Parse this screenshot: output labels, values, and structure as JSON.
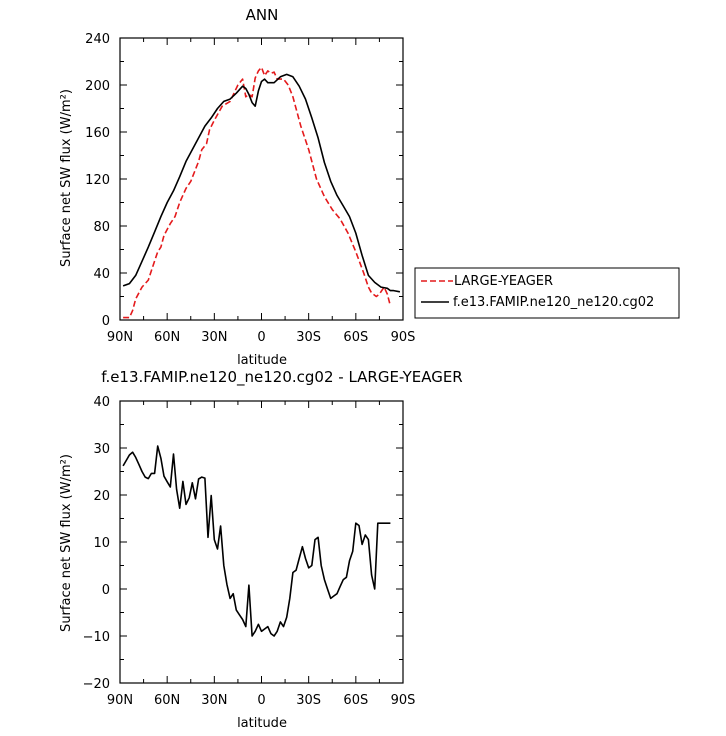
{
  "chart_data": [
    {
      "type": "line",
      "title": "ANN",
      "xlabel": "latitude",
      "ylabel": "Surface net SW flux (W/m²)",
      "xlim": [
        90,
        -90
      ],
      "ylim": [
        0,
        240
      ],
      "xticks": [
        90,
        60,
        30,
        0,
        -30,
        -60,
        -90
      ],
      "xticklabels": [
        "90N",
        "60N",
        "30N",
        "0",
        "30S",
        "60S",
        "90S"
      ],
      "yticks": [
        0,
        40,
        80,
        120,
        160,
        200,
        240
      ],
      "yticklabels": [
        "0",
        "40",
        "80",
        "120",
        "160",
        "200",
        "240"
      ],
      "grid": false,
      "legend": "outside-right",
      "series": [
        {
          "name": "LARGE-YEAGER",
          "color": "#e41a1c",
          "dash": "dashed",
          "x": [
            88,
            84,
            82,
            80,
            76,
            72,
            70,
            66,
            64,
            62,
            58,
            55,
            52,
            48,
            45,
            40,
            38,
            35,
            33,
            30,
            25,
            20,
            15,
            12,
            10,
            8,
            6,
            4,
            2,
            0,
            -2,
            -4,
            -6,
            -8,
            -10,
            -14,
            -17,
            -20,
            -25,
            -30,
            -35,
            -40,
            -45,
            -50,
            -55,
            -60,
            -65,
            -68,
            -70,
            -73,
            -75,
            -78,
            -80,
            -82
          ],
          "y": [
            2,
            2,
            8,
            18,
            28,
            34,
            42,
            58,
            62,
            72,
            82,
            88,
            100,
            112,
            118,
            135,
            145,
            150,
            162,
            170,
            182,
            186,
            200,
            205,
            190,
            192,
            190,
            206,
            212,
            215,
            208,
            212,
            210,
            211,
            205,
            205,
            200,
            190,
            165,
            145,
            120,
            105,
            94,
            86,
            74,
            58,
            40,
            28,
            23,
            20,
            22,
            28,
            22,
            12
          ]
        },
        {
          "name": "f.e13.FAMIP.ne120_ne120.cg02",
          "color": "#000000",
          "dash": "solid",
          "x": [
            88,
            84,
            80,
            76,
            72,
            68,
            64,
            60,
            56,
            52,
            48,
            44,
            40,
            36,
            32,
            28,
            24,
            20,
            16,
            12,
            10,
            8,
            6,
            4,
            2,
            0,
            -2,
            -4,
            -8,
            -12,
            -16,
            -20,
            -24,
            -28,
            -32,
            -36,
            -40,
            -44,
            -48,
            -52,
            -56,
            -60,
            -64,
            -68,
            -72,
            -76,
            -80,
            -82,
            -84,
            -88
          ],
          "y": [
            29,
            31,
            38,
            50,
            62,
            75,
            88,
            100,
            110,
            122,
            135,
            145,
            155,
            165,
            172,
            180,
            186,
            188,
            193,
            199,
            197,
            192,
            185,
            182,
            195,
            203,
            205,
            202,
            202,
            207,
            209,
            207,
            199,
            188,
            172,
            155,
            134,
            118,
            106,
            97,
            88,
            74,
            55,
            38,
            32,
            28,
            27,
            25,
            25,
            24
          ]
        }
      ]
    },
    {
      "type": "line",
      "title": "f.e13.FAMIP.ne120_ne120.cg02 - LARGE-YEAGER",
      "xlabel": "latitude",
      "ylabel": "Surface net SW flux (W/m²)",
      "xlim": [
        90,
        -90
      ],
      "ylim": [
        -20,
        40
      ],
      "xticks": [
        90,
        60,
        30,
        0,
        -30,
        -60,
        -90
      ],
      "xticklabels": [
        "90N",
        "60N",
        "30N",
        "0",
        "30S",
        "60S",
        "90S"
      ],
      "yticks": [
        -20,
        -10,
        0,
        10,
        20,
        30,
        40
      ],
      "yticklabels": [
        "−20",
        "−10",
        "0",
        "10",
        "20",
        "30",
        "40"
      ],
      "grid": false,
      "series": [
        {
          "color": "#000000",
          "dash": "solid",
          "x": [
            88,
            84,
            82,
            80,
            78,
            76,
            74,
            72,
            70,
            68,
            66,
            64,
            62,
            60,
            58,
            56,
            54,
            52,
            50,
            48,
            46,
            44,
            42,
            40,
            38,
            36,
            34,
            32,
            30,
            28,
            26,
            24,
            22,
            20,
            18,
            16,
            14,
            12,
            10,
            8,
            6,
            4,
            2,
            0,
            -2,
            -4,
            -6,
            -8,
            -10,
            -12,
            -14,
            -16,
            -18,
            -20,
            -22,
            -24,
            -26,
            -28,
            -30,
            -32,
            -34,
            -36,
            -38,
            -40,
            -42,
            -44,
            -46,
            -48,
            -50,
            -52,
            -54,
            -56,
            -58,
            -60,
            -62,
            -64,
            -66,
            -68,
            -70,
            -72,
            -74,
            -76,
            -78,
            -80,
            -82
          ],
          "y": [
            26.2,
            28.5,
            29.1,
            28.0,
            26.5,
            25.0,
            23.8,
            23.5,
            24.6,
            24.6,
            30.4,
            27.8,
            24.0,
            22.8,
            21.7,
            28.7,
            21.2,
            17.2,
            22.9,
            18.0,
            19.4,
            22.6,
            19.2,
            23.4,
            23.8,
            23.6,
            11.0,
            19.9,
            10.5,
            8.5,
            13.4,
            5.0,
            1.0,
            -2.0,
            -1.0,
            -4.5,
            -5.5,
            -6.5,
            -8.0,
            0.8,
            -10.0,
            -9.0,
            -7.5,
            -9.0,
            -8.5,
            -8.0,
            -9.5,
            -10.0,
            -9.0,
            -7.0,
            -8.0,
            -6.0,
            -2.0,
            3.5,
            4.0,
            6.5,
            9.0,
            6.5,
            4.5,
            5.0,
            10.5,
            11.0,
            5.0,
            2.0,
            0.0,
            -2.0,
            -1.5,
            -1.0,
            0.5,
            2.0,
            2.5,
            6.0,
            8.0,
            14.0,
            13.5,
            9.5,
            11.5,
            10.5,
            3.0,
            0.0,
            14.0,
            14.0,
            14.0,
            14.0,
            14.0
          ]
        }
      ]
    }
  ]
}
